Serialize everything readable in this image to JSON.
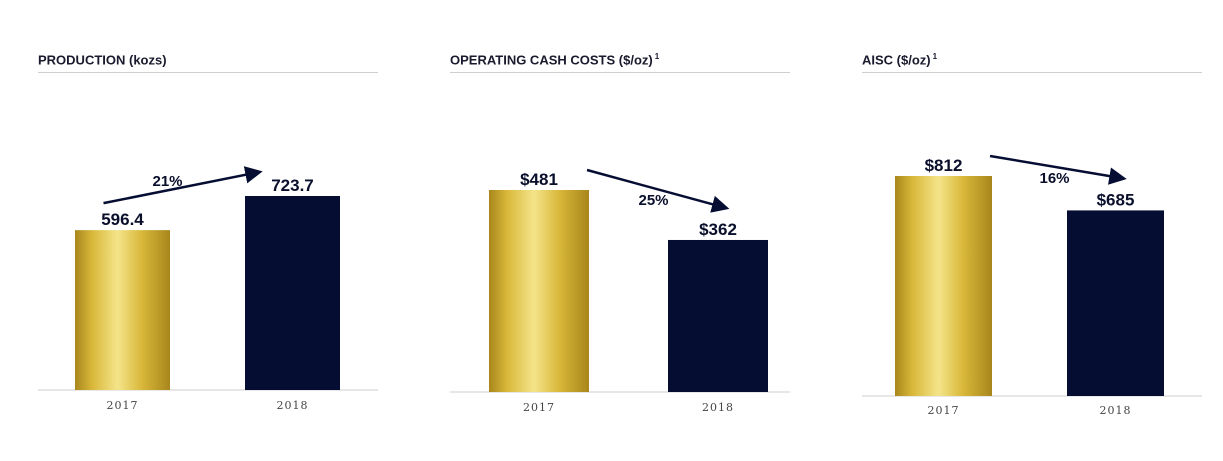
{
  "colors": {
    "navy": "#060d33",
    "gold_light": "#f4e48a",
    "gold_mid": "#d9b83a",
    "gold_dark": "#a8861c",
    "axis": "#cfcfcf",
    "text": "#0a0f2c"
  },
  "chart_data": [
    {
      "type": "bar",
      "title": "PRODUCTION (kozs)",
      "footnote": "",
      "categories": [
        "2017",
        "2018"
      ],
      "values": [
        596.4,
        723.7
      ],
      "value_labels": [
        "596.4",
        "723.7"
      ],
      "bar_colors": [
        "gold",
        "navy"
      ],
      "change": {
        "label": "21%",
        "direction": "up"
      },
      "ylim": [
        0,
        723.7
      ],
      "grid": false,
      "legend": "none"
    },
    {
      "type": "bar",
      "title": "OPERATING CASH COSTS ($/oz)",
      "footnote": "1",
      "categories": [
        "2017",
        "2018"
      ],
      "values": [
        481,
        362
      ],
      "value_labels": [
        "$481",
        "$362"
      ],
      "bar_colors": [
        "gold",
        "navy"
      ],
      "change": {
        "label": "25%",
        "direction": "down"
      },
      "ylim": [
        0,
        481
      ],
      "grid": false,
      "legend": "none"
    },
    {
      "type": "bar",
      "title": "AISC ($/oz)",
      "footnote": "1",
      "categories": [
        "2017",
        "2018"
      ],
      "values": [
        812,
        685
      ],
      "value_labels": [
        "$812",
        "$685"
      ],
      "bar_colors": [
        "gold",
        "navy"
      ],
      "change": {
        "label": "16%",
        "direction": "down"
      },
      "ylim": [
        0,
        812
      ],
      "grid": false,
      "legend": "none"
    }
  ]
}
